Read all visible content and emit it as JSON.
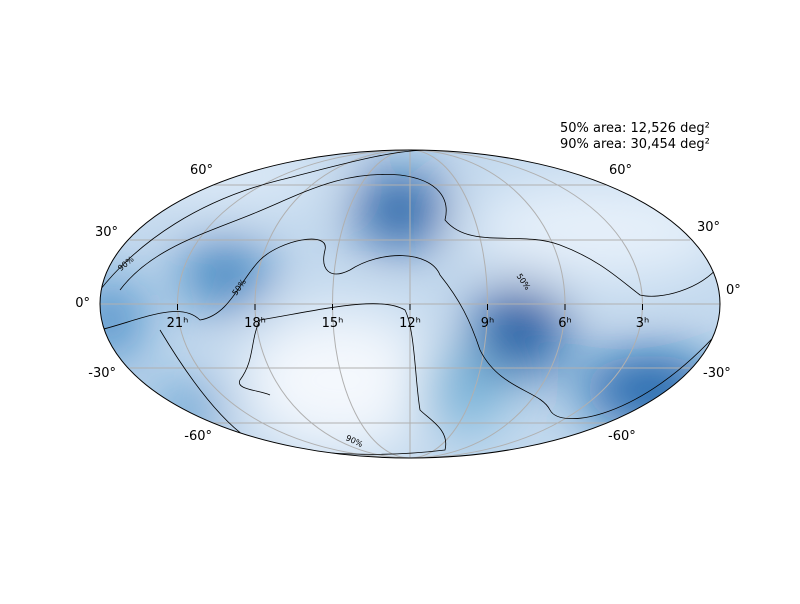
{
  "annotations": {
    "area_50": "50% area: 12,526 deg²",
    "area_90": "90% area: 30,454 deg²"
  },
  "dec_labels": [
    "60°",
    "30°",
    "0°",
    "-30°",
    "-60°"
  ],
  "ra_labels": [
    "21ʰ",
    "18ʰ",
    "15ʰ",
    "12ʰ",
    "9ʰ",
    "6ʰ",
    "3ʰ"
  ],
  "contour_labels": [
    "90%",
    "50%",
    "50%",
    "90%"
  ]
}
